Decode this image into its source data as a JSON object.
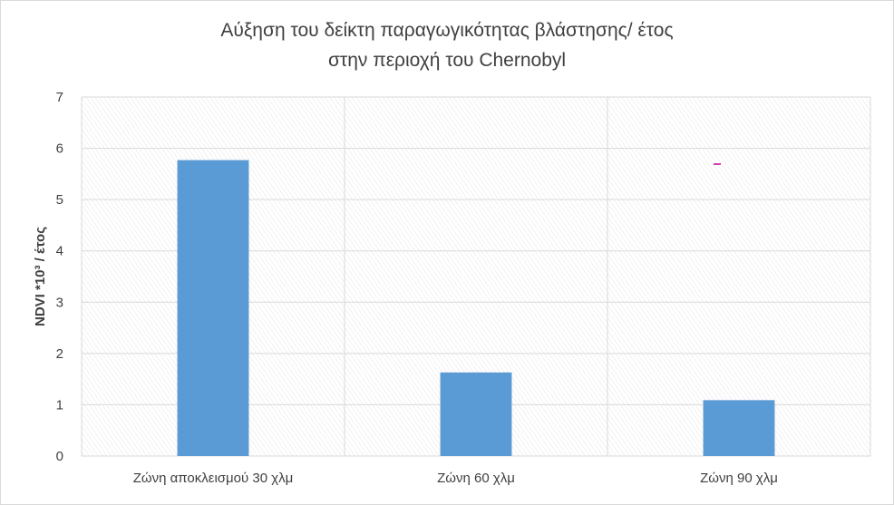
{
  "chart_data": {
    "type": "bar",
    "title_line1": "Αύξηση του δείκτη παραγωγικότητας βλάστησης/ έτος",
    "title_line2": "στην περιοχή του Chernobyl",
    "ylabel": "NDVI *10³ / έτος",
    "xlabel": "",
    "categories": [
      "Ζώνη αποκλεισμού 30 χλμ",
      "Ζώνη 60 χλμ",
      "Ζώνη 90 χλμ"
    ],
    "values": [
      5.77,
      1.63,
      1.09
    ],
    "ylim": [
      0,
      7
    ],
    "yticks": [
      0,
      1,
      2,
      3,
      4,
      5,
      6,
      7
    ],
    "grid": true,
    "legend": "none",
    "bar_color": "#5b9bd5",
    "marker_color": "#cc0099"
  }
}
